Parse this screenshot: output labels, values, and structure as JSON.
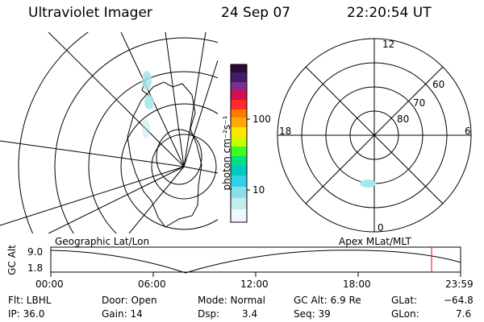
{
  "header": {
    "instrument": "Ultraviolet Imager",
    "date": "24 Sep 07",
    "time": "22:20:54 UT"
  },
  "colorbar": {
    "label": "photon cm⁻²s⁻¹",
    "ticks": [
      "100",
      "10"
    ]
  },
  "polar_plot": {
    "mlt_labels": [
      "12",
      "18",
      "6",
      "0"
    ],
    "lat_labels": [
      "60",
      "70",
      "80"
    ]
  },
  "map_titles": {
    "left": "Geographic Lat/Lon",
    "right": "Apex MLat/MLT"
  },
  "altitude_panel": {
    "ylabel": "GC Alt",
    "yticks": [
      "9.0",
      "1.8"
    ],
    "xticks": [
      "00:00",
      "06:00",
      "12:00",
      "18:00",
      "23:59"
    ],
    "marker_color": "#ff0000"
  },
  "info": {
    "flt": "Flt: LBHL",
    "ip": "IP: 36.0",
    "door": "Door: Open",
    "gain": "Gain: 14",
    "mode": "Mode: Normal",
    "dsp_label": "Dsp:",
    "dsp_value": "3.4",
    "gc_alt": "GC Alt: 6.9 Re",
    "seq": "Seq: 39",
    "glat_label": "GLat:",
    "glat_value": "−64.8",
    "glon_label": "GLon:",
    "glon_value": "7.6"
  }
}
